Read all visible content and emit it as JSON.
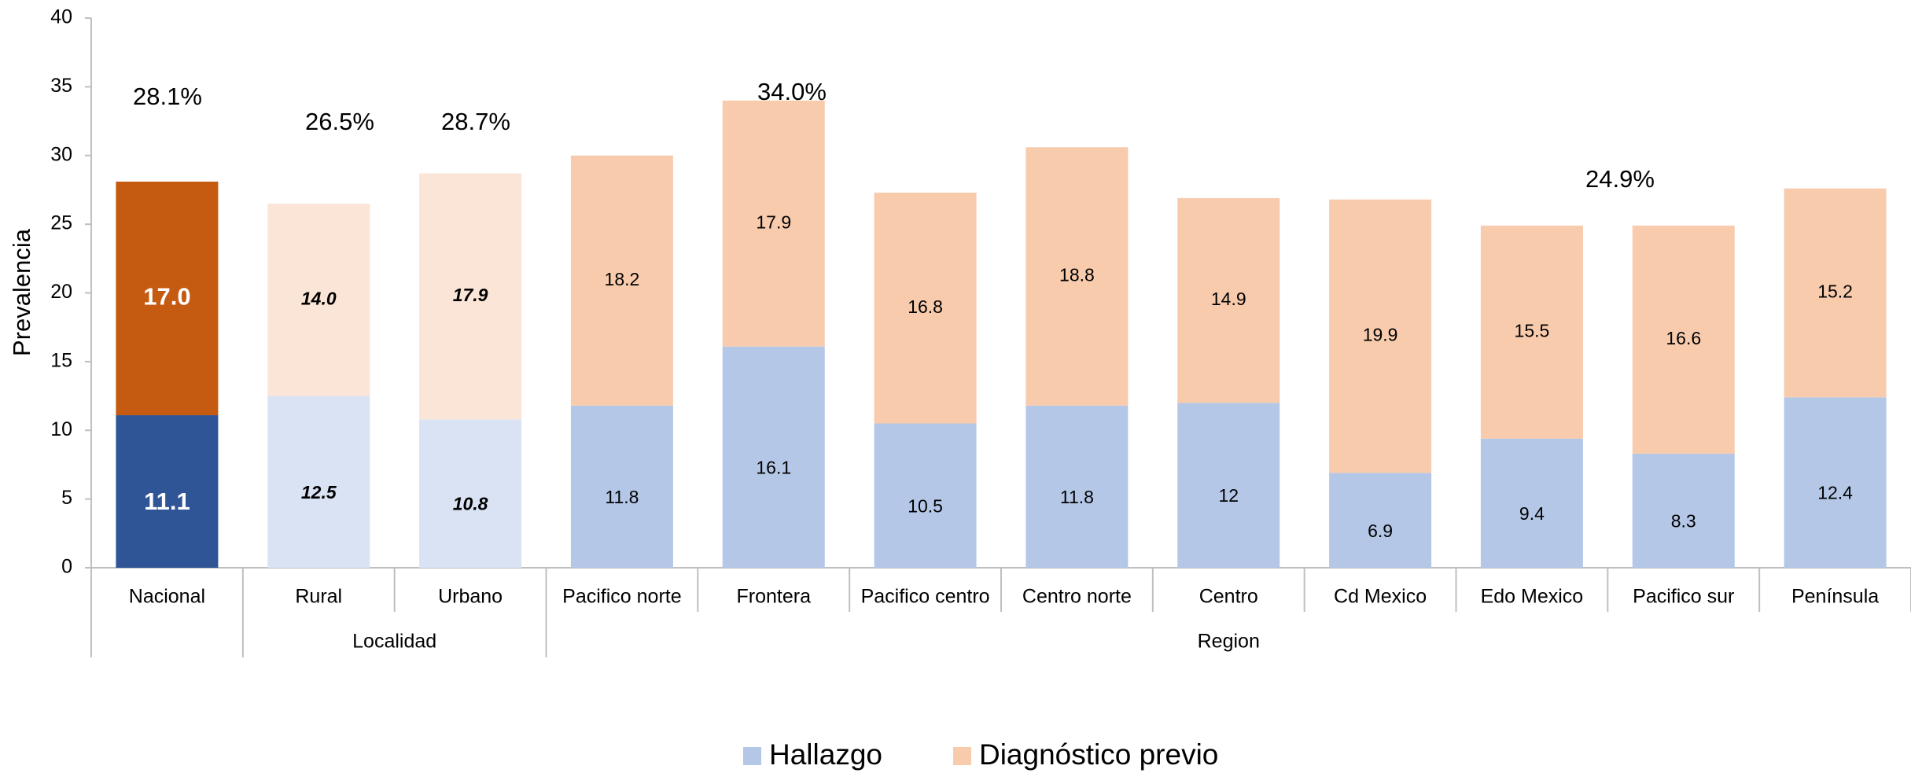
{
  "chart_data": {
    "type": "bar",
    "stacked": true,
    "y_label": "Prevalencia",
    "categories": [
      "Nacional",
      "Rural",
      "Urbano",
      "Pacifico norte",
      "Frontera",
      "Pacifico centro",
      "Centro norte",
      "Centro",
      "Cd Mexico",
      "Edo Mexico",
      "Pacifico sur",
      "Península"
    ],
    "groups": [
      {
        "label": "Localidad",
        "size": 2
      },
      {
        "label": "Region",
        "size": 9
      }
    ],
    "series": [
      {
        "name": "Hallazgo",
        "color": "#b4c7e7",
        "point_colors": [
          "#2f5597",
          "#dae3f3",
          "#dae3f3",
          "#b4c7e7",
          "#b4c7e7",
          "#b4c7e7",
          "#b4c7e7",
          "#b4c7e7",
          "#b4c7e7",
          "#b4c7e7",
          "#b4c7e7",
          "#b4c7e7"
        ],
        "values": [
          11.1,
          12.5,
          10.8,
          11.8,
          16.1,
          10.5,
          11.8,
          12,
          6.9,
          9.4,
          8.3,
          12.4
        ]
      },
      {
        "name": "Diagnóstico previo",
        "color": "#f8cbad",
        "point_colors": [
          "#c55a11",
          "#fbe5d6",
          "#fbe5d6",
          "#f8cbad",
          "#f8cbad",
          "#f8cbad",
          "#f8cbad",
          "#f8cbad",
          "#f8cbad",
          "#f8cbad",
          "#f8cbad",
          "#f8cbad"
        ],
        "values": [
          17.0,
          14.0,
          17.9,
          18.2,
          17.9,
          16.8,
          18.8,
          14.9,
          19.9,
          15.5,
          16.6,
          15.2
        ],
        "value_labels": [
          "17.0",
          "14.0",
          "17.9",
          "18.2",
          "17.9",
          "16.8",
          "18.8",
          "14.9",
          "19.9",
          "15.5",
          "16.6",
          "15.2"
        ]
      }
    ],
    "annotations": [
      "28.1%",
      "26.5%",
      "28.7%",
      "34.0%",
      "24.9%"
    ],
    "ylim": [
      0,
      40
    ],
    "yticks": [
      0,
      5,
      10,
      15,
      20,
      25,
      30,
      35,
      40
    ],
    "grid": false,
    "legend": "bottom"
  }
}
